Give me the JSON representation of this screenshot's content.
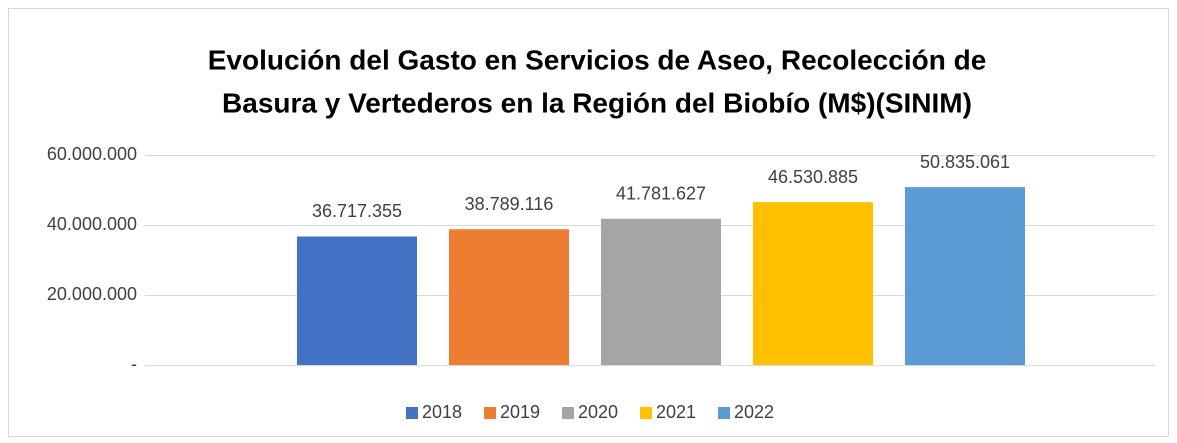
{
  "chart_data": {
    "type": "bar",
    "title": [
      "Evolución del Gasto en Servicios de Aseo, Recolección de",
      "Basura y Vertederos en la Región del Biobío (M$)(SINIM)"
    ],
    "categories": [
      null
    ],
    "series": [
      {
        "name": "2018",
        "color": "#4472c4",
        "values": [
          36717355
        ],
        "value_labels": [
          "36.717.355"
        ]
      },
      {
        "name": "2019",
        "color": "#ed7d31",
        "values": [
          38789116
        ],
        "value_labels": [
          "38.789.116"
        ]
      },
      {
        "name": "2020",
        "color": "#a5a5a5",
        "values": [
          41781627
        ],
        "value_labels": [
          "41.781.627"
        ]
      },
      {
        "name": "2021",
        "color": "#ffc000",
        "values": [
          46530885
        ],
        "value_labels": [
          "46.530.885"
        ]
      },
      {
        "name": "2022",
        "color": "#5b9bd5",
        "values": [
          50835061
        ],
        "value_labels": [
          "50.835.061"
        ]
      }
    ],
    "ylim": [
      0,
      60000000
    ],
    "yticks": [
      {
        "value": 0,
        "label": "-"
      },
      {
        "value": 20000000,
        "label": "20.000.000"
      },
      {
        "value": 40000000,
        "label": "40.000.000"
      },
      {
        "value": 60000000,
        "label": "60.000.000"
      }
    ],
    "grid": true,
    "legend": "bottom"
  }
}
